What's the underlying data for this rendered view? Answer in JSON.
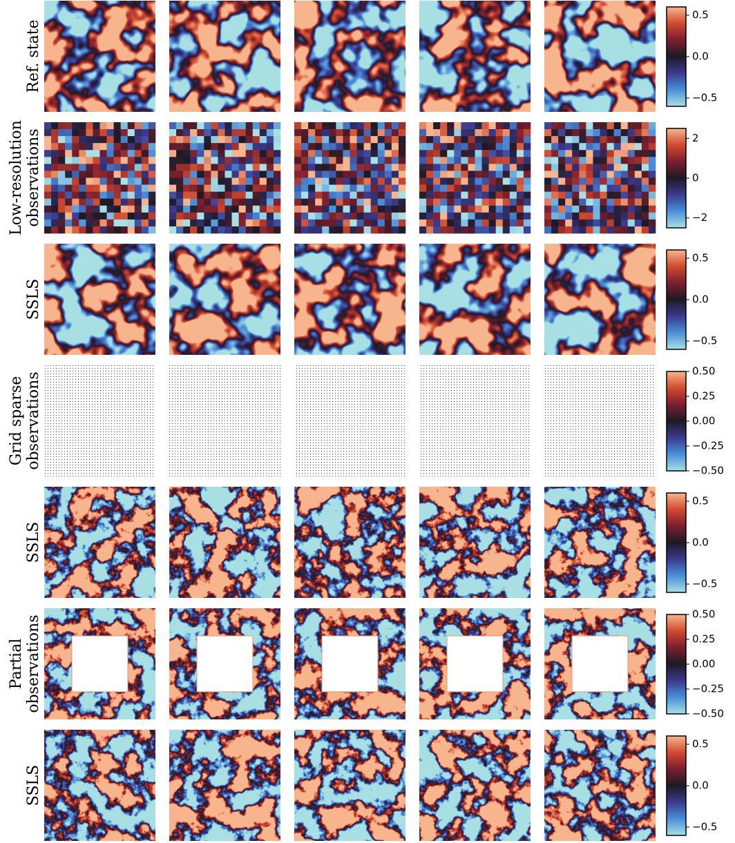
{
  "colormap": [
    "#a8e0e4",
    "#4a8fd9",
    "#3c3a8f",
    "#1c1a24",
    "#7a1e2e",
    "#d04a2e",
    "#f7b58e"
  ],
  "rows": [
    {
      "label": [
        "Ref. state"
      ],
      "colorbar": {
        "lim": [
          -0.6,
          0.6
        ],
        "ticks": [
          {
            "value": -0.5,
            "label": "−0.5"
          },
          {
            "value": 0,
            "label": "0.0"
          },
          {
            "value": 0.5,
            "label": "0.5"
          }
        ]
      }
    },
    {
      "label": [
        "Low-resolution",
        "observations"
      ],
      "colorbar": {
        "lim": [
          -2.5,
          2.5
        ],
        "ticks": [
          {
            "value": -2,
            "label": "−2"
          },
          0,
          2
        ]
      }
    },
    {
      "label": [
        "SSLS"
      ],
      "colorbar": {
        "lim": [
          -0.6,
          0.6
        ],
        "ticks": [
          {
            "value": -0.5,
            "label": "−0.5"
          },
          {
            "value": 0,
            "label": "0.0"
          },
          {
            "value": 0.5,
            "label": "0.5"
          }
        ]
      }
    },
    {
      "label": [
        "Grid sparse",
        "observations"
      ],
      "colorbar": {
        "lim": [
          -0.5,
          0.5
        ],
        "ticks": [
          {
            "value": -0.5,
            "label": "−0.50"
          },
          {
            "value": -0.25,
            "label": "−0.25"
          },
          {
            "value": 0,
            "label": "0.00"
          },
          {
            "value": 0.25,
            "label": "0.25"
          },
          {
            "value": 0.5,
            "label": "0.50"
          }
        ]
      }
    },
    {
      "label": [
        "SSLS"
      ],
      "colorbar": {
        "lim": [
          -0.6,
          0.6
        ],
        "ticks": [
          {
            "value": -0.5,
            "label": "−0.5"
          },
          {
            "value": 0,
            "label": "0.0"
          },
          {
            "value": 0.5,
            "label": "0.5"
          }
        ]
      }
    },
    {
      "label": [
        "Partial",
        "observations"
      ],
      "colorbar": {
        "lim": [
          -0.5,
          0.5
        ],
        "ticks": [
          {
            "value": -0.5,
            "label": "−0.50"
          },
          {
            "value": -0.25,
            "label": "−0.25"
          },
          {
            "value": 0,
            "label": "0.00"
          },
          {
            "value": 0.25,
            "label": "0.25"
          },
          {
            "value": 0.5,
            "label": "0.50"
          }
        ]
      }
    },
    {
      "label": [
        "SSLS"
      ],
      "colorbar": {
        "lim": [
          -0.6,
          0.6
        ],
        "ticks": [
          {
            "value": -0.5,
            "label": "−0.5"
          },
          {
            "value": 0,
            "label": "0.0"
          },
          {
            "value": 0.5,
            "label": "0.5"
          }
        ]
      }
    }
  ]
}
